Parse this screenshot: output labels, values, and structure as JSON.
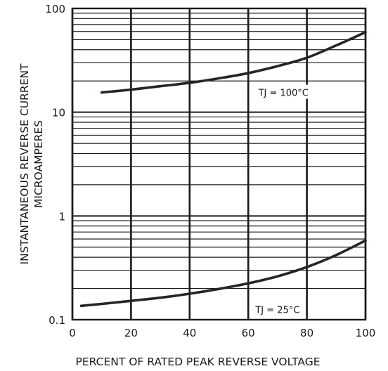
{
  "chart_data": {
    "type": "line",
    "title": "",
    "xlabel": "PERCENT OF RATED PEAK REVERSE VOLTAGE",
    "ylabel": [
      "INSTANTANEOUS REVERSE CURRENT",
      "MICROAMPERES"
    ],
    "xlim": [
      0,
      100
    ],
    "ylim": [
      0.1,
      100
    ],
    "y_scale": "log",
    "grid": true,
    "x_ticks": [
      "0",
      "20",
      "40",
      "60",
      "80",
      "100"
    ],
    "y_ticks": [
      "0.1",
      "1",
      "10",
      "100"
    ],
    "series": [
      {
        "name": "TJ = 100°C",
        "x": [
          10,
          20,
          30,
          40,
          50,
          60,
          70,
          80,
          90,
          100
        ],
        "y": [
          15.5,
          16.5,
          17.8,
          19.2,
          21.2,
          23.8,
          27.8,
          33.5,
          44,
          59
        ]
      },
      {
        "name": "TJ = 25°C",
        "x": [
          3,
          10,
          20,
          30,
          40,
          50,
          60,
          70,
          80,
          90,
          100
        ],
        "y": [
          0.136,
          0.142,
          0.152,
          0.163,
          0.178,
          0.198,
          0.224,
          0.262,
          0.322,
          0.42,
          0.58
        ]
      }
    ],
    "annotations": [
      {
        "text": "TJ = 100°C",
        "x": 72,
        "y": 15.5
      },
      {
        "text": "TJ = 25°C",
        "x": 70,
        "y": 0.125
      }
    ]
  }
}
